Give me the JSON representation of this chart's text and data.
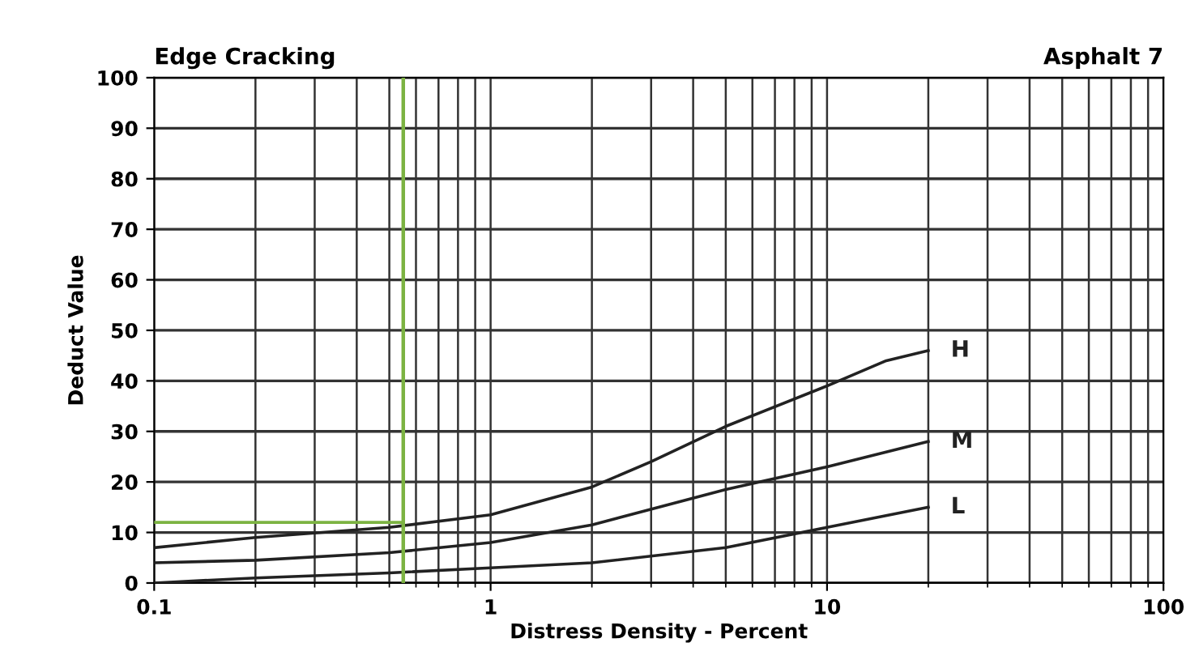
{
  "chart_data": {
    "type": "line",
    "title": "Edge Cracking",
    "subtitle": "Asphalt 7",
    "xlabel": "Distress Density - Percent",
    "ylabel": "Deduct Value",
    "log": "x",
    "xlim": [
      0.1,
      100
    ],
    "xticks": [
      0.1,
      1,
      10,
      100
    ],
    "ylim": [
      0,
      100
    ],
    "yticks": [
      0,
      10,
      20,
      30,
      40,
      50,
      60,
      70,
      80,
      90,
      100
    ],
    "grid": true,
    "legend": false,
    "marker": "none",
    "line_style": "solid",
    "series": [
      {
        "name": "H",
        "color": "#222222",
        "x": [
          0.1,
          0.2,
          0.5,
          1,
          2,
          3,
          5,
          10,
          15,
          20
        ],
        "values": [
          7,
          9,
          11,
          13.5,
          19,
          24,
          31,
          39,
          44,
          46
        ]
      },
      {
        "name": "M",
        "color": "#222222",
        "x": [
          0.1,
          0.2,
          0.5,
          1,
          2,
          5,
          10,
          20
        ],
        "values": [
          4,
          4.5,
          6,
          8,
          11.5,
          18.5,
          23,
          28
        ]
      },
      {
        "name": "L",
        "color": "#222222",
        "x": [
          0.1,
          0.2,
          0.5,
          1,
          2,
          5,
          10,
          20
        ],
        "values": [
          0,
          1,
          2,
          3,
          4,
          7,
          11,
          15
        ]
      },
      {
        "color": "#7cb342",
        "x": [
          0.1,
          0.55
        ],
        "values": [
          12,
          12
        ]
      }
    ],
    "ref_lines": [
      {
        "axis": "x",
        "value": 0.55,
        "color": "#7cb342",
        "line_style": "solid"
      }
    ]
  }
}
